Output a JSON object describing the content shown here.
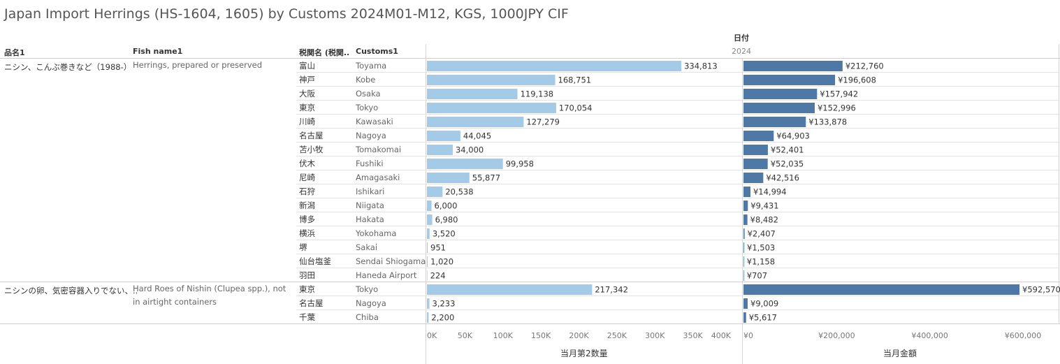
{
  "title": "Japan Import Herrings (HS-1604, 1605) by Customs 2024M01-M12, KGS, 1000JPY CIF",
  "headers": {
    "date_label": "日付",
    "year_label": "2024",
    "col_name_jp": "品名1",
    "col_name_en": "Fish name1",
    "col_customs_jp": "税関名 (税関..",
    "col_customs_en": "Customs1"
  },
  "colors": {
    "quantity_bar": "#a3cbe8",
    "value_bar": "#4e79a7",
    "grid": "#e3e3e3"
  },
  "chart_data": {
    "type": "bar",
    "orientation": "horizontal",
    "title": "Japan Import Herrings (HS-1604, 1605) by Customs 2024M01-M12, KGS, 1000JPY CIF",
    "groups": [
      {
        "name_jp": "ニシン、こんぶ巻きなど（1988-）",
        "name_en": "Herrings, prepared or preserved",
        "rows": [
          {
            "customs_jp": "富山",
            "customs_en": "Toyama",
            "quantity": 334813,
            "quantity_label": "334,813",
            "value": 212760,
            "value_label": "¥212,760"
          },
          {
            "customs_jp": "神戸",
            "customs_en": "Kobe",
            "quantity": 168751,
            "quantity_label": "168,751",
            "value": 196608,
            "value_label": "¥196,608"
          },
          {
            "customs_jp": "大阪",
            "customs_en": "Osaka",
            "quantity": 119138,
            "quantity_label": "119,138",
            "value": 157942,
            "value_label": "¥157,942"
          },
          {
            "customs_jp": "東京",
            "customs_en": "Tokyo",
            "quantity": 170054,
            "quantity_label": "170,054",
            "value": 152996,
            "value_label": "¥152,996"
          },
          {
            "customs_jp": "川崎",
            "customs_en": "Kawasaki",
            "quantity": 127279,
            "quantity_label": "127,279",
            "value": 133878,
            "value_label": "¥133,878"
          },
          {
            "customs_jp": "名古屋",
            "customs_en": "Nagoya",
            "quantity": 44045,
            "quantity_label": "44,045",
            "value": 64903,
            "value_label": "¥64,903"
          },
          {
            "customs_jp": "苫小牧",
            "customs_en": "Tomakomai",
            "quantity": 34000,
            "quantity_label": "34,000",
            "value": 52401,
            "value_label": "¥52,401"
          },
          {
            "customs_jp": "伏木",
            "customs_en": "Fushiki",
            "quantity": 99958,
            "quantity_label": "99,958",
            "value": 52035,
            "value_label": "¥52,035"
          },
          {
            "customs_jp": "尼崎",
            "customs_en": "Amagasaki",
            "quantity": 55877,
            "quantity_label": "55,877",
            "value": 42516,
            "value_label": "¥42,516"
          },
          {
            "customs_jp": "石狩",
            "customs_en": "Ishikari",
            "quantity": 20538,
            "quantity_label": "20,538",
            "value": 14994,
            "value_label": "¥14,994"
          },
          {
            "customs_jp": "新潟",
            "customs_en": "Niigata",
            "quantity": 6000,
            "quantity_label": "6,000",
            "value": 9431,
            "value_label": "¥9,431"
          },
          {
            "customs_jp": "博多",
            "customs_en": "Hakata",
            "quantity": 6980,
            "quantity_label": "6,980",
            "value": 8482,
            "value_label": "¥8,482"
          },
          {
            "customs_jp": "横浜",
            "customs_en": "Yokohama",
            "quantity": 3520,
            "quantity_label": "3,520",
            "value": 2407,
            "value_label": "¥2,407"
          },
          {
            "customs_jp": "堺",
            "customs_en": "Sakai",
            "quantity": 951,
            "quantity_label": "951",
            "value": 1503,
            "value_label": "¥1,503"
          },
          {
            "customs_jp": "仙台塩釜",
            "customs_en": "Sendai Shiogama",
            "quantity": 1020,
            "quantity_label": "1,020",
            "value": 1158,
            "value_label": "¥1,158"
          },
          {
            "customs_jp": "羽田",
            "customs_en": "Haneda Airport",
            "quantity": 224,
            "quantity_label": "224",
            "value": 707,
            "value_label": "¥707"
          }
        ]
      },
      {
        "name_jp": "ニシンの卵、気密容器入りでない、..",
        "name_en": "Hard Roes of Nishin (Clupea spp.), not in airtight containers",
        "rows": [
          {
            "customs_jp": "東京",
            "customs_en": "Tokyo",
            "quantity": 217342,
            "quantity_label": "217,342",
            "value": 592570,
            "value_label": "¥592,570"
          },
          {
            "customs_jp": "名古屋",
            "customs_en": "Nagoya",
            "quantity": 3233,
            "quantity_label": "3,233",
            "value": 9009,
            "value_label": "¥9,009"
          },
          {
            "customs_jp": "千葉",
            "customs_en": "Chiba",
            "quantity": 2200,
            "quantity_label": "2,200",
            "value": 5617,
            "value_label": "¥5,617"
          }
        ]
      }
    ],
    "quantity_axis": {
      "label": "当月第2数量",
      "range": [
        0,
        400000
      ],
      "ticks": [
        0,
        50000,
        100000,
        150000,
        200000,
        250000,
        300000,
        350000,
        400000
      ],
      "tick_labels": [
        "0K",
        "50K",
        "100K",
        "150K",
        "200K",
        "250K",
        "300K",
        "350K",
        "400K"
      ]
    },
    "value_axis": {
      "label": "当月金額",
      "range": [
        0,
        600000
      ],
      "ticks": [
        0,
        200000,
        400000,
        600000
      ],
      "tick_labels": [
        "¥0",
        "¥200,000",
        "¥400,000",
        "¥600,000"
      ]
    },
    "grid": false,
    "legend": "none"
  }
}
